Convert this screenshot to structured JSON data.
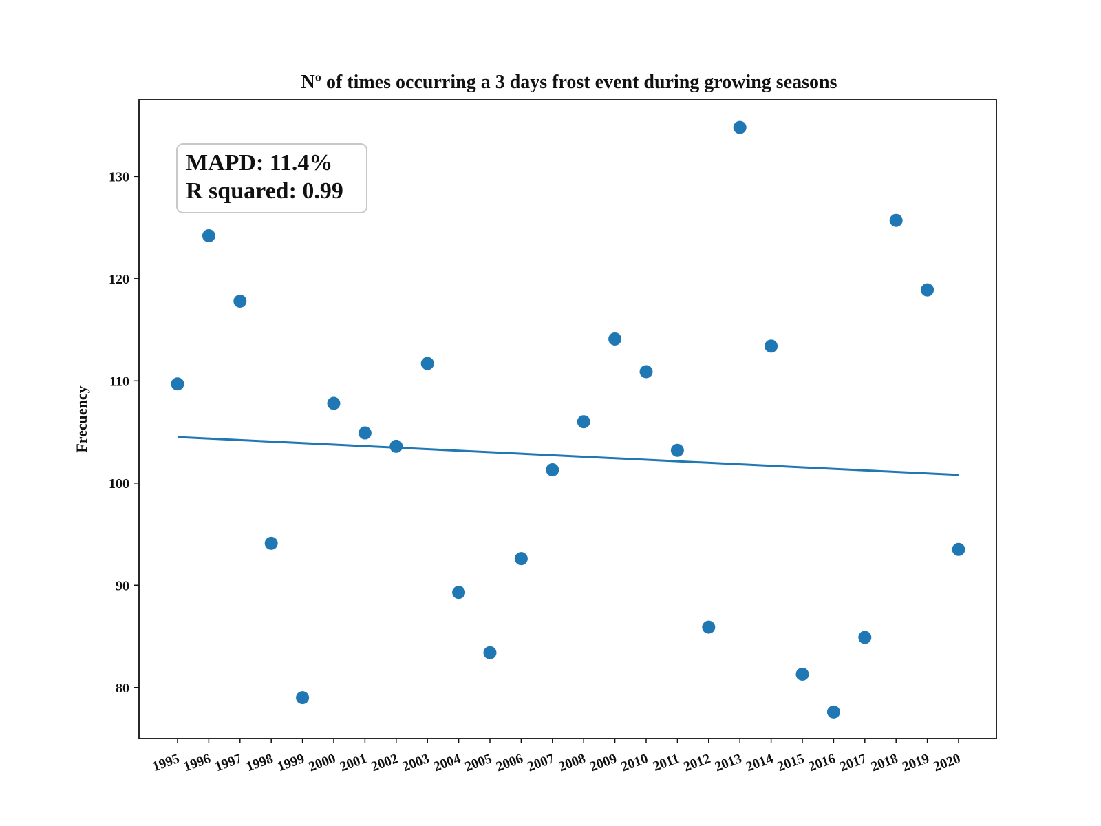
{
  "chart_data": {
    "type": "scatter",
    "title": "Nº of times occurring a 3 days frost event during growing seasons",
    "xlabel": "",
    "ylabel": "Frecuency",
    "categories": [
      "1995",
      "1996",
      "1997",
      "1998",
      "1999",
      "2000",
      "2001",
      "2002",
      "2003",
      "2004",
      "2005",
      "2006",
      "2007",
      "2008",
      "2009",
      "2010",
      "2011",
      "2012",
      "2013",
      "2014",
      "2015",
      "2016",
      "2017",
      "2018",
      "2019",
      "2020"
    ],
    "series": [
      {
        "values": [
          109.7,
          124.2,
          117.8,
          94.1,
          79.0,
          107.8,
          104.9,
          103.6,
          111.7,
          89.3,
          83.4,
          92.6,
          101.3,
          106.0,
          114.1,
          110.9,
          103.2,
          85.9,
          134.8,
          113.4,
          81.3,
          77.6,
          84.9,
          125.7,
          118.9,
          93.5
        ],
        "color": "#1f77b4"
      }
    ],
    "trendline": {
      "start": 104.5,
      "end": 100.8,
      "color": "#1f77b4"
    },
    "yticks": [
      80,
      90,
      100,
      110,
      120,
      130
    ],
    "ylim": [
      75,
      137.5
    ],
    "grid": false,
    "annotation": {
      "lines": [
        "MAPD: 11.4%",
        "R squared: 0.99"
      ],
      "placement": "top-left"
    }
  }
}
